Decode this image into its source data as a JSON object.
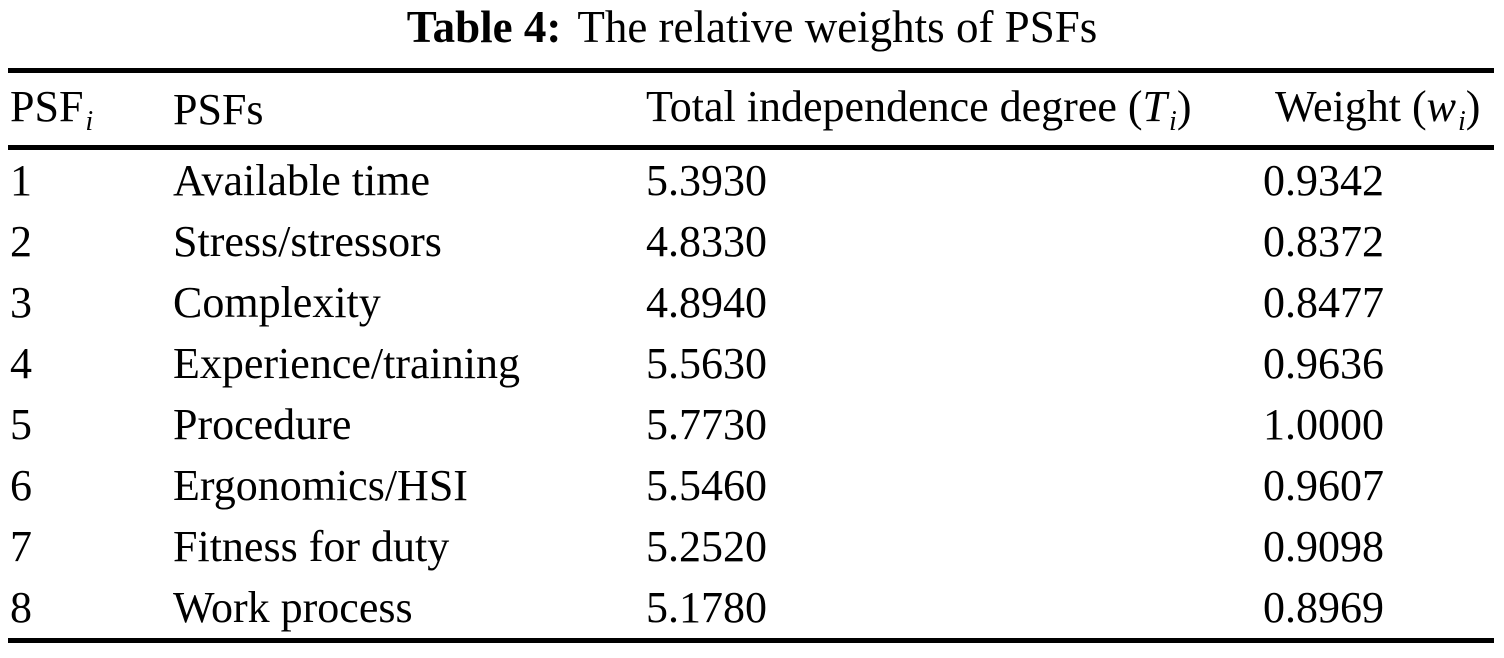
{
  "caption": {
    "label": "Table 4:",
    "text": "The relative weights of PSFs"
  },
  "table": {
    "headers": {
      "psf_index": {
        "base": "PSF",
        "sub": "i"
      },
      "psf_name": "PSFs",
      "total_independence": {
        "prefix": "Total independence degree (",
        "var": "T",
        "sub": "i",
        "suffix": ")"
      },
      "weight": {
        "prefix": "Weight (",
        "var": "w",
        "sub": "i",
        "suffix": ")"
      }
    },
    "rows": [
      {
        "psf_index": "1",
        "psf_name": "Available time",
        "total_independence": "5.3930",
        "weight": "0.9342"
      },
      {
        "psf_index": "2",
        "psf_name": "Stress/stressors",
        "total_independence": "4.8330",
        "weight": "0.8372"
      },
      {
        "psf_index": "3",
        "psf_name": "Complexity",
        "total_independence": "4.8940",
        "weight": "0.8477"
      },
      {
        "psf_index": "4",
        "psf_name": "Experience/training",
        "total_independence": "5.5630",
        "weight": "0.9636"
      },
      {
        "psf_index": "5",
        "psf_name": "Procedure",
        "total_independence": "5.7730",
        "weight": "1.0000"
      },
      {
        "psf_index": "6",
        "psf_name": "Ergonomics/HSI",
        "total_independence": "5.5460",
        "weight": "0.9607"
      },
      {
        "psf_index": "7",
        "psf_name": "Fitness for duty",
        "total_independence": "5.2520",
        "weight": "0.9098"
      },
      {
        "psf_index": "8",
        "psf_name": "Work process",
        "total_independence": "5.1780",
        "weight": "0.8969"
      }
    ],
    "colors": {
      "text": "#000000",
      "background": "#ffffff",
      "rule": "#000000"
    }
  }
}
